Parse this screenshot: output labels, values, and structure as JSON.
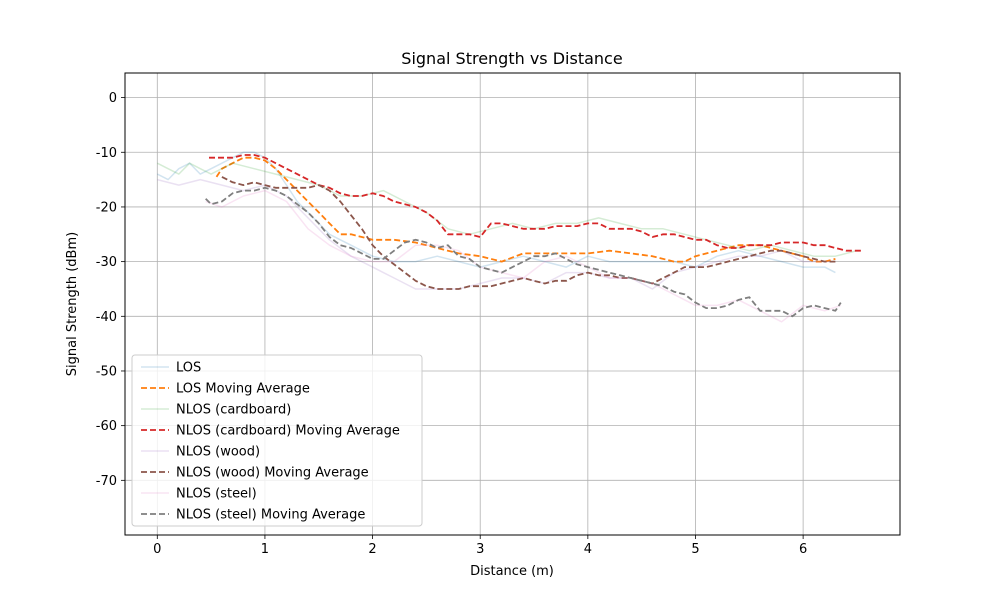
{
  "chart_data": {
    "type": "line",
    "title": "Signal Strength vs Distance",
    "xlabel": "Distance (m)",
    "ylabel": "Signal Strength (dBm)",
    "xlim": [
      -0.3,
      6.9
    ],
    "ylim": [
      -80,
      4.5
    ],
    "xticks": [
      0,
      1,
      2,
      3,
      4,
      5,
      6
    ],
    "yticks": [
      0,
      -10,
      -20,
      -30,
      -40,
      -50,
      -60,
      -70
    ],
    "grid": true,
    "legend_position": "lower-left",
    "series": [
      {
        "name": "LOS",
        "color": "#1f77b4",
        "style": "solid-faint",
        "x": [
          0,
          0.1,
          0.2,
          0.3,
          0.4,
          0.5,
          0.6,
          0.7,
          0.8,
          0.9,
          1.0,
          1.1,
          1.2,
          1.3,
          1.4,
          1.5,
          1.6,
          1.7,
          1.8,
          1.9,
          2.0,
          2.2,
          2.4,
          2.6,
          2.8,
          3.0,
          3.2,
          3.4,
          3.6,
          3.8,
          4.0,
          4.2,
          4.4,
          4.6,
          4.8,
          5.0,
          5.2,
          5.4,
          5.6,
          5.8,
          6.0,
          6.2,
          6.3
        ],
        "y": [
          -14,
          -15,
          -13,
          -12,
          -14,
          -13,
          -12,
          -11,
          -10,
          -10,
          -11,
          -13,
          -16,
          -19,
          -21,
          -23,
          -25,
          -26,
          -27,
          -28,
          -29,
          -30,
          -30,
          -29,
          -30,
          -31,
          -30,
          -29,
          -30,
          -31,
          -29,
          -30,
          -30,
          -30,
          -30,
          -31,
          -29,
          -28,
          -29,
          -30,
          -31,
          -31,
          -32
        ]
      },
      {
        "name": "LOS Moving Average",
        "color": "#ff7f0e",
        "style": "dashed",
        "x": [
          0.55,
          0.6,
          0.7,
          0.8,
          0.9,
          1.0,
          1.1,
          1.2,
          1.3,
          1.4,
          1.5,
          1.6,
          1.7,
          1.8,
          1.9,
          2.0,
          2.2,
          2.4,
          2.6,
          2.8,
          3.0,
          3.2,
          3.4,
          3.6,
          3.8,
          4.0,
          4.2,
          4.4,
          4.6,
          4.8,
          4.9,
          5.0,
          5.2,
          5.4,
          5.6,
          5.8,
          6.0,
          6.1,
          6.2,
          6.3
        ],
        "y": [
          -14.5,
          -13,
          -12,
          -11,
          -11,
          -11.5,
          -13,
          -15,
          -17,
          -19,
          -21,
          -23,
          -25,
          -25,
          -25.5,
          -26,
          -26,
          -26.5,
          -27.5,
          -28.5,
          -29,
          -30,
          -28.5,
          -28.5,
          -28.5,
          -28.5,
          -28,
          -28.5,
          -29,
          -30,
          -30,
          -29,
          -28,
          -27,
          -27,
          -28,
          -29,
          -30,
          -30,
          -29.5
        ]
      },
      {
        "name": "NLOS (cardboard)",
        "color": "#2ca02c",
        "style": "solid-faint",
        "x": [
          0,
          0.1,
          0.2,
          0.3,
          0.4,
          0.5,
          0.7,
          0.9,
          1.1,
          1.3,
          1.5,
          1.7,
          1.9,
          2.1,
          2.3,
          2.5,
          2.7,
          2.9,
          3.1,
          3.3,
          3.5,
          3.7,
          3.9,
          4.1,
          4.3,
          4.5,
          4.7,
          4.9,
          5.1,
          5.3,
          5.5,
          5.7,
          5.9,
          6.1,
          6.3,
          6.5
        ],
        "y": [
          -12,
          -13,
          -14,
          -12,
          -13,
          -14,
          -12,
          -13,
          -14,
          -15,
          -16,
          -18,
          -18,
          -17,
          -19,
          -21,
          -24,
          -25,
          -24,
          -23,
          -24,
          -23,
          -23,
          -22,
          -23,
          -24,
          -24,
          -25,
          -26,
          -27,
          -28,
          -27,
          -28,
          -29,
          -29,
          -28
        ]
      },
      {
        "name": "NLOS (cardboard) Moving Average",
        "color": "#d62728",
        "style": "dashed",
        "x": [
          0.48,
          0.6,
          0.7,
          0.8,
          0.9,
          1.0,
          1.1,
          1.2,
          1.3,
          1.4,
          1.5,
          1.6,
          1.7,
          1.8,
          1.9,
          2.0,
          2.1,
          2.2,
          2.3,
          2.4,
          2.5,
          2.6,
          2.7,
          2.8,
          2.9,
          3.0,
          3.1,
          3.2,
          3.3,
          3.4,
          3.5,
          3.6,
          3.7,
          3.8,
          3.9,
          4.0,
          4.1,
          4.2,
          4.3,
          4.4,
          4.5,
          4.6,
          4.7,
          4.8,
          4.9,
          5.0,
          5.1,
          5.2,
          5.3,
          5.4,
          5.5,
          5.6,
          5.7,
          5.8,
          5.9,
          6.0,
          6.1,
          6.2,
          6.3,
          6.4,
          6.5,
          6.55
        ],
        "y": [
          -11,
          -11,
          -11,
          -10.5,
          -10.5,
          -11,
          -12,
          -13,
          -14,
          -15,
          -16,
          -16.5,
          -17.5,
          -18,
          -18,
          -17.5,
          -18,
          -19,
          -19.5,
          -20,
          -21,
          -22.5,
          -25,
          -25,
          -25,
          -25.5,
          -23,
          -23,
          -23.5,
          -24,
          -24,
          -24,
          -23.5,
          -23.5,
          -23.5,
          -23,
          -23,
          -24,
          -24,
          -24,
          -24.5,
          -25.5,
          -25,
          -25,
          -25.5,
          -26,
          -26,
          -27,
          -27.5,
          -27.5,
          -27,
          -27,
          -27,
          -26.5,
          -26.5,
          -26.5,
          -27,
          -27,
          -27.5,
          -28,
          -28,
          -28
        ]
      },
      {
        "name": "NLOS (wood)",
        "color": "#9467bd",
        "style": "solid-faint",
        "x": [
          0,
          0.2,
          0.4,
          0.6,
          0.8,
          1.0,
          1.2,
          1.4,
          1.6,
          1.8,
          2.0,
          2.2,
          2.4,
          2.6,
          2.8,
          3.0,
          3.2,
          3.4,
          3.6,
          3.8,
          4.0,
          4.2,
          4.4,
          4.6,
          4.8,
          5.0,
          5.2,
          5.4,
          5.6,
          5.8,
          6.0,
          6.2,
          6.3
        ],
        "y": [
          -15,
          -16,
          -15,
          -16,
          -17,
          -16,
          -18,
          -22,
          -26,
          -29,
          -31,
          -33,
          -35,
          -35,
          -35,
          -34,
          -33,
          -33,
          -34,
          -32,
          -32,
          -33,
          -33,
          -35,
          -32,
          -31,
          -30,
          -29,
          -29,
          -28,
          -30,
          -30,
          -30
        ]
      },
      {
        "name": "NLOS (wood) Moving Average",
        "color": "#8c564b",
        "style": "dashed",
        "x": [
          0.6,
          0.7,
          0.8,
          0.9,
          1.0,
          1.1,
          1.2,
          1.3,
          1.4,
          1.5,
          1.6,
          1.7,
          1.8,
          1.9,
          2.0,
          2.1,
          2.2,
          2.3,
          2.4,
          2.5,
          2.6,
          2.7,
          2.8,
          2.9,
          3.0,
          3.1,
          3.2,
          3.3,
          3.4,
          3.5,
          3.6,
          3.7,
          3.8,
          3.9,
          4.0,
          4.1,
          4.2,
          4.3,
          4.4,
          4.5,
          4.6,
          4.7,
          4.8,
          4.9,
          5.0,
          5.1,
          5.2,
          5.3,
          5.4,
          5.5,
          5.6,
          5.7,
          5.8,
          5.9,
          6.0,
          6.1,
          6.2,
          6.3
        ],
        "y": [
          -14.5,
          -15.5,
          -16,
          -15.5,
          -16,
          -16.5,
          -16.5,
          -16.5,
          -16.5,
          -16,
          -17,
          -19,
          -21.5,
          -24,
          -27,
          -29,
          -30.5,
          -32,
          -33.5,
          -34.5,
          -35,
          -35,
          -35,
          -34.5,
          -34.5,
          -34.5,
          -34,
          -33.5,
          -33,
          -33.5,
          -34,
          -33.5,
          -33.5,
          -32.5,
          -32,
          -32.5,
          -32.5,
          -33,
          -33,
          -33.5,
          -34,
          -33,
          -32,
          -31,
          -31,
          -31,
          -30.5,
          -30,
          -29.5,
          -29,
          -28.5,
          -28,
          -28,
          -28.5,
          -29,
          -29.5,
          -30,
          -30
        ]
      },
      {
        "name": "NLOS (steel)",
        "color": "#e377c2",
        "style": "solid-faint",
        "x": [
          0.45,
          0.6,
          0.8,
          1.0,
          1.2,
          1.4,
          1.6,
          1.8,
          2.0,
          2.2,
          2.4,
          2.6,
          2.8,
          3.0,
          3.2,
          3.4,
          3.6,
          3.8,
          4.0,
          4.2,
          4.4,
          4.6,
          4.8,
          5.0,
          5.2,
          5.4,
          5.6,
          5.8,
          6.0,
          6.2,
          6.35
        ],
        "y": [
          -19,
          -20,
          -18,
          -17,
          -19,
          -24,
          -27,
          -29,
          -30,
          -30,
          -27,
          -27,
          -28,
          -31,
          -32,
          -33,
          -30,
          -29,
          -31,
          -33,
          -33,
          -34,
          -36,
          -38,
          -38,
          -37,
          -39,
          -41,
          -38,
          -39,
          -38
        ]
      },
      {
        "name": "NLOS (steel) Moving Average",
        "color": "#7f7f7f",
        "style": "dashed",
        "x": [
          0.45,
          0.5,
          0.6,
          0.7,
          0.8,
          0.9,
          1.0,
          1.1,
          1.2,
          1.3,
          1.4,
          1.5,
          1.6,
          1.7,
          1.8,
          1.9,
          2.0,
          2.1,
          2.2,
          2.3,
          2.4,
          2.5,
          2.6,
          2.7,
          2.8,
          2.9,
          3.0,
          3.1,
          3.2,
          3.3,
          3.4,
          3.5,
          3.6,
          3.7,
          3.8,
          3.9,
          4.0,
          4.1,
          4.2,
          4.3,
          4.4,
          4.5,
          4.6,
          4.7,
          4.8,
          4.9,
          5.0,
          5.1,
          5.2,
          5.3,
          5.4,
          5.5,
          5.6,
          5.7,
          5.8,
          5.9,
          6.0,
          6.1,
          6.2,
          6.3,
          6.35
        ],
        "y": [
          -18.5,
          -19.5,
          -19,
          -17.5,
          -17,
          -17,
          -16.5,
          -17,
          -18,
          -19.5,
          -21,
          -23,
          -25.5,
          -27,
          -27.5,
          -28.5,
          -29.5,
          -29.5,
          -28,
          -26.5,
          -26,
          -26.5,
          -27.5,
          -27,
          -29,
          -29.5,
          -31,
          -31.5,
          -32,
          -31,
          -30,
          -29,
          -29,
          -28.5,
          -29.5,
          -30.5,
          -31,
          -31.5,
          -32,
          -32.5,
          -33,
          -33.5,
          -34,
          -34.5,
          -35.5,
          -36,
          -37.5,
          -38.5,
          -38.5,
          -38,
          -37,
          -36.5,
          -39,
          -39,
          -39,
          -40,
          -38.5,
          -38,
          -38.5,
          -39,
          -37.5
        ]
      }
    ]
  }
}
